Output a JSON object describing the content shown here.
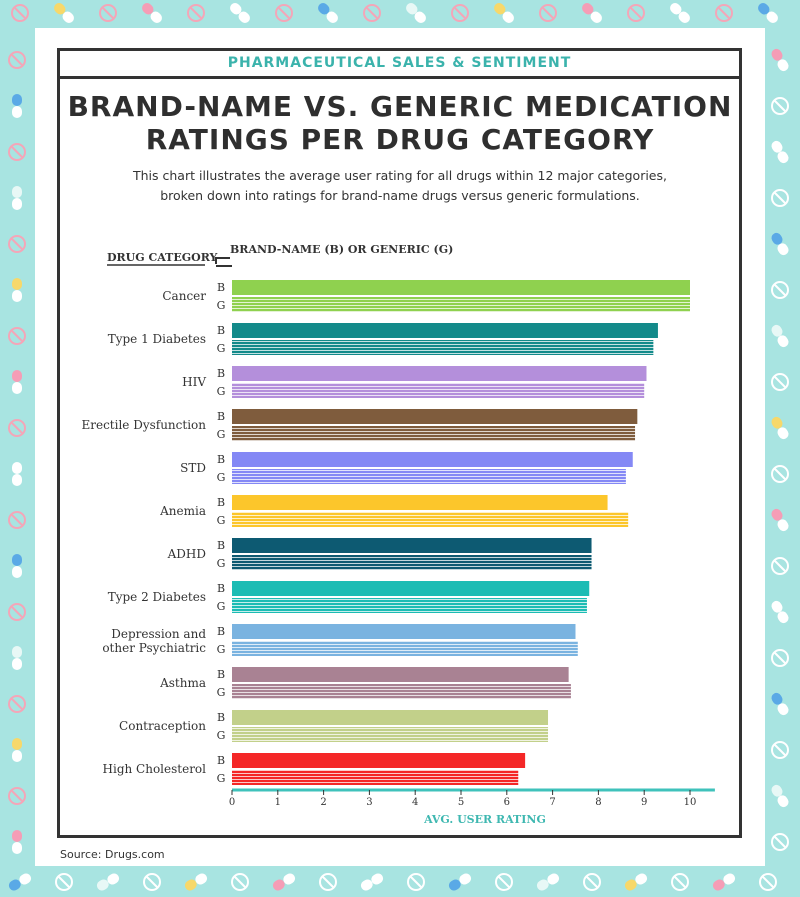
{
  "header": {
    "banner": "PHARMACEUTICAL SALES & SENTIMENT",
    "title_line1": "BRAND-NAME VS. GENERIC MEDICATION",
    "title_line2": "RATINGS PER DRUG CATEGORY",
    "subtitle_line1": "This chart illustrates the average user rating for all drugs within 12 major categories,",
    "subtitle_line2": "broken down into ratings for brand-name drugs versus generic formulations."
  },
  "footer": {
    "source": "Source: Drugs.com"
  },
  "chart_data": {
    "type": "bar",
    "orientation": "horizontal",
    "category_header": "DRUG CATEGORY",
    "series_header": "BRAND-NAME (B) OR GENERIC (G)",
    "xlabel": "AVG. USER RATING",
    "xlim": [
      0,
      10.5
    ],
    "xticks": [
      "0",
      "1",
      "2",
      "3",
      "4",
      "5",
      "6",
      "7",
      "8",
      "9",
      "10"
    ],
    "grid": false,
    "series_labels": [
      "B",
      "G"
    ],
    "categories": [
      {
        "name": "Cancer",
        "color": "#8fd14f",
        "brand": 10.0,
        "generic": 10.0
      },
      {
        "name": "Type 1 Diabetes",
        "color": "#138a8a",
        "brand": 9.3,
        "generic": 9.2
      },
      {
        "name": "HIV",
        "color": "#b48fdb",
        "brand": 9.05,
        "generic": 9.0
      },
      {
        "name": "Erectile Dysfunction",
        "color": "#7f5c3d",
        "brand": 8.85,
        "generic": 8.8
      },
      {
        "name": "STD",
        "color": "#8488f5",
        "brand": 8.75,
        "generic": 8.6
      },
      {
        "name": "Anemia",
        "color": "#fcc62b",
        "brand": 8.2,
        "generic": 8.65
      },
      {
        "name": "ADHD",
        "color": "#0d5a72",
        "brand": 7.85,
        "generic": 7.85
      },
      {
        "name": "Type 2 Diabetes",
        "color": "#1cbcb4",
        "brand": 7.8,
        "generic": 7.75
      },
      {
        "name": "Depression and|other Psychiatric",
        "color": "#7ab3e0",
        "brand": 7.5,
        "generic": 7.55
      },
      {
        "name": "Asthma",
        "color": "#a98293",
        "brand": 7.35,
        "generic": 7.4
      },
      {
        "name": "Contraception",
        "color": "#c2d08a",
        "brand": 6.9,
        "generic": 6.9
      },
      {
        "name": "High Cholesterol",
        "color": "#f42727",
        "brand": 6.4,
        "generic": 6.25
      }
    ]
  }
}
